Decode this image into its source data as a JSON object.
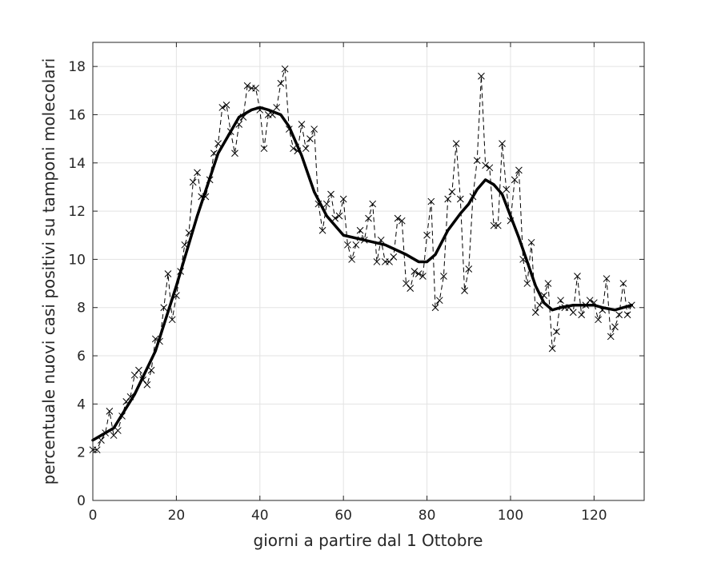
{
  "chart_data": {
    "type": "line",
    "title": "",
    "xlabel": "giorni a partire dal 1 Ottobre",
    "ylabel": "percentuale nuovi casi positivi su tamponi molecolari",
    "xlim": [
      0,
      132
    ],
    "ylim": [
      0,
      19
    ],
    "xticks": [
      0,
      20,
      40,
      60,
      80,
      100,
      120
    ],
    "yticks": [
      0,
      2,
      4,
      6,
      8,
      10,
      12,
      14,
      16,
      18
    ],
    "grid": true,
    "legend": "none",
    "series": [
      {
        "style": "dashed-with-x-markers",
        "color": "#000000",
        "x": [
          0,
          1,
          2,
          3,
          4,
          5,
          6,
          7,
          8,
          9,
          10,
          11,
          12,
          13,
          14,
          15,
          16,
          17,
          18,
          19,
          20,
          21,
          22,
          23,
          24,
          25,
          26,
          27,
          28,
          29,
          30,
          31,
          32,
          33,
          34,
          35,
          36,
          37,
          38,
          39,
          40,
          41,
          42,
          43,
          44,
          45,
          46,
          47,
          48,
          49,
          50,
          51,
          52,
          53,
          54,
          55,
          56,
          57,
          58,
          59,
          60,
          61,
          62,
          63,
          64,
          65,
          66,
          67,
          68,
          69,
          70,
          71,
          72,
          73,
          74,
          75,
          76,
          77,
          78,
          79,
          80,
          81,
          82,
          83,
          84,
          85,
          86,
          87,
          88,
          89,
          90,
          91,
          92,
          93,
          94,
          95,
          96,
          97,
          98,
          99,
          100,
          101,
          102,
          103,
          104,
          105,
          106,
          107,
          108,
          109,
          110,
          111,
          112,
          113,
          114,
          115,
          116,
          117,
          118,
          119,
          120,
          121,
          122,
          123,
          124,
          125,
          126,
          127,
          128,
          129
        ],
        "y": [
          2.1,
          2.1,
          2.5,
          2.8,
          3.7,
          2.7,
          2.9,
          3.5,
          4.1,
          4.3,
          5.2,
          5.4,
          5.0,
          4.8,
          5.4,
          6.7,
          6.6,
          8.0,
          9.4,
          7.5,
          8.5,
          9.5,
          10.6,
          11.1,
          13.2,
          13.6,
          12.6,
          12.6,
          13.3,
          14.4,
          14.8,
          16.3,
          16.4,
          15.3,
          14.4,
          15.6,
          15.9,
          17.2,
          17.1,
          17.1,
          16.2,
          14.6,
          16.0,
          16.0,
          16.3,
          17.3,
          17.9,
          15.4,
          14.6,
          14.5,
          15.6,
          14.6,
          15.0,
          15.4,
          12.3,
          11.2,
          12.3,
          12.7,
          11.7,
          11.8,
          12.5,
          10.6,
          10.0,
          10.6,
          11.2,
          10.8,
          11.7,
          12.3,
          9.9,
          10.8,
          9.9,
          9.9,
          10.1,
          11.7,
          11.6,
          9.0,
          8.8,
          9.5,
          9.4,
          9.3,
          11.0,
          12.4,
          8.0,
          8.3,
          9.3,
          12.5,
          12.8,
          14.8,
          12.5,
          8.7,
          9.6,
          12.6,
          14.1,
          17.6,
          13.9,
          13.8,
          11.4,
          11.4,
          14.8,
          12.9,
          11.6,
          13.3,
          13.7,
          10.0,
          9.0,
          10.7,
          7.8,
          8.1,
          8.5,
          9.0,
          6.3,
          7.0,
          8.3,
          8.0,
          8.0,
          7.8,
          9.3,
          7.7,
          8.1,
          8.3,
          8.2,
          7.5,
          7.9,
          9.2,
          6.8,
          7.2,
          7.7,
          9.0,
          7.7,
          8.1
        ]
      },
      {
        "style": "solid-thick",
        "color": "#000000",
        "x": [
          0,
          5,
          10,
          15,
          20,
          25,
          30,
          35,
          38,
          40,
          42,
          45,
          47,
          50,
          53,
          56,
          60,
          65,
          70,
          75,
          78,
          80,
          82,
          85,
          88,
          90,
          92,
          94,
          96,
          98,
          100,
          102,
          104,
          106,
          108,
          110,
          112,
          115,
          118,
          120,
          122,
          125,
          129
        ],
        "y": [
          2.5,
          3.0,
          4.4,
          6.2,
          8.9,
          11.8,
          14.4,
          15.9,
          16.2,
          16.3,
          16.2,
          16.0,
          15.5,
          14.3,
          12.8,
          11.8,
          11.0,
          10.8,
          10.6,
          10.2,
          9.9,
          9.9,
          10.2,
          11.2,
          11.9,
          12.3,
          12.9,
          13.3,
          13.1,
          12.7,
          11.8,
          10.9,
          9.9,
          8.9,
          8.2,
          7.9,
          8.0,
          8.1,
          8.1,
          8.1,
          8.0,
          7.9,
          8.1
        ]
      }
    ]
  }
}
